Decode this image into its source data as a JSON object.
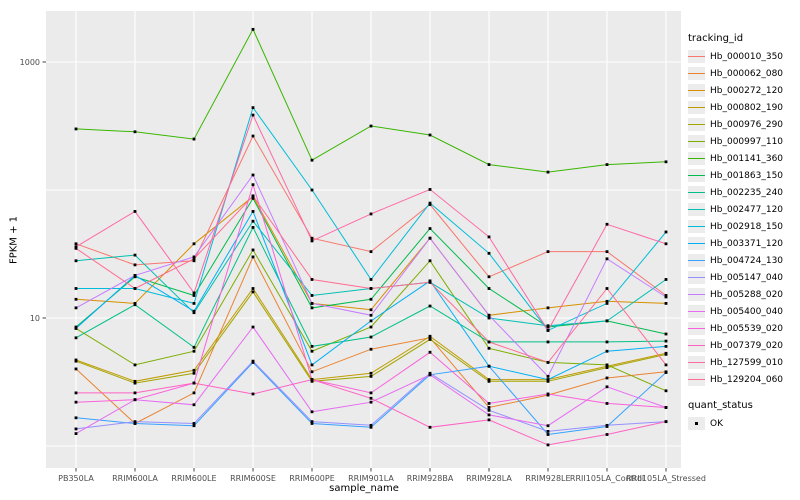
{
  "chart": {
    "y_axis": {
      "label": "FPKM + 1",
      "tick_labels": [
        "1000",
        "10"
      ]
    },
    "x_axis": {
      "label": "sample_name"
    },
    "legend": {
      "tracking_title": "tracking_id",
      "quant_title": "quant_status",
      "quant_label": "OK"
    }
  },
  "chart_data": {
    "type": "line",
    "title": "",
    "xlabel": "sample_name",
    "ylabel": "FPKM + 1",
    "y_scale": "log10",
    "ylim": [
      0.7,
      2500
    ],
    "y_ticks": [
      10,
      1000
    ],
    "grid": true,
    "legend_position": "right",
    "panel_bg": "#EBEBEB",
    "point_color": "#000000",
    "point_legend": {
      "title": "quant_status",
      "items": [
        "OK"
      ]
    },
    "legend_title": "tracking_id",
    "categories": [
      "PB350LA",
      "RRIM600LA",
      "RRIM600LE",
      "RRIM600SE",
      "RRIM600PE",
      "RRIM901LA",
      "RRIM928BA",
      "RRIM928LA",
      "RRIM928LE",
      "RRII105LA_Control",
      "RRII105LA_Stressed"
    ],
    "series": [
      {
        "name": "Hb_000010_350",
        "color": "#F8766D",
        "values": [
          38,
          26,
          28,
          264,
          42,
          33,
          77,
          21,
          33,
          33,
          15
        ]
      },
      {
        "name": "Hb_000062_080",
        "color": "#EA8331",
        "values": [
          4.0,
          1.5,
          2.6,
          30,
          3.8,
          5.7,
          7.0,
          2.0,
          2.5,
          3.4,
          3.8
        ]
      },
      {
        "name": "Hb_000272_120",
        "color": "#D89000",
        "values": [
          14,
          13,
          38,
          89,
          13,
          11.6,
          42,
          10.5,
          12,
          13.5,
          13
        ]
      },
      {
        "name": "Hb_000802_190",
        "color": "#C09B00",
        "values": [
          4.7,
          3.2,
          3.9,
          17,
          3.3,
          3.7,
          7.2,
          3.3,
          3.3,
          4.2,
          5.3
        ]
      },
      {
        "name": "Hb_000976_290",
        "color": "#A3A500",
        "values": [
          4.6,
          3.1,
          3.7,
          16,
          3.2,
          3.5,
          6.8,
          3.2,
          3.2,
          4.1,
          5.2
        ]
      },
      {
        "name": "Hb_000997_110",
        "color": "#7CAE00",
        "values": [
          8.3,
          4.3,
          5.5,
          34,
          5.5,
          8.5,
          28,
          5.8,
          4.5,
          4.3,
          2.7
        ]
      },
      {
        "name": "Hb_001141_360",
        "color": "#39B600",
        "values": [
          300,
          285,
          250,
          1800,
          171,
          316,
          269,
          158,
          138,
          158,
          166
        ]
      },
      {
        "name": "Hb_001863_150",
        "color": "#00BB4E",
        "values": [
          8.5,
          21,
          15,
          86,
          12,
          14,
          50,
          17,
          8.5,
          9.5,
          7.5
        ]
      },
      {
        "name": "Hb_002235_240",
        "color": "#00C087",
        "values": [
          7.0,
          12.7,
          5.9,
          51,
          6.0,
          7.1,
          12.4,
          6.5,
          6.5,
          6.5,
          6.6
        ]
      },
      {
        "name": "Hb_002477_120",
        "color": "#00C0B2",
        "values": [
          28,
          31,
          11,
          57,
          15,
          17,
          19,
          10,
          8.7,
          9.5,
          20
        ]
      },
      {
        "name": "Hb_002918_150",
        "color": "#00BCD8",
        "values": [
          17,
          17,
          13,
          440,
          100,
          20,
          79,
          32,
          8.0,
          13,
          47
        ]
      },
      {
        "name": "Hb_003371_120",
        "color": "#00B0F6",
        "values": [
          8.3,
          21.5,
          11.3,
          68,
          4.3,
          9.5,
          19.5,
          4.2,
          3.3,
          5.5,
          6.0
        ]
      },
      {
        "name": "Hb_004724_130",
        "color": "#35A2FF",
        "values": [
          1.66,
          1.5,
          1.44,
          4.5,
          1.5,
          1.4,
          3.6,
          4.2,
          1.23,
          1.42,
          3.75
        ]
      },
      {
        "name": "Hb_005147_040",
        "color": "#9590FF",
        "values": [
          1.36,
          1.55,
          1.5,
          4.6,
          1.55,
          1.45,
          3.7,
          1.9,
          1.3,
          1.45,
          1.55
        ]
      },
      {
        "name": "Hb_005288_020",
        "color": "#C77CFF",
        "values": [
          12,
          21.5,
          30,
          131,
          13,
          10.5,
          42,
          10.5,
          3.5,
          29,
          14.6
        ]
      },
      {
        "name": "Hb_005400_040",
        "color": "#E76BF3",
        "values": [
          1.25,
          2.3,
          2.1,
          8.5,
          1.85,
          2.2,
          3.6,
          1.75,
          1.44,
          2.9,
          2.0
        ]
      },
      {
        "name": "Hb_005539_020",
        "color": "#FA62DB",
        "values": [
          2.2,
          2.3,
          3.1,
          110,
          3.3,
          2.6,
          5.4,
          2.15,
          2.55,
          2.15,
          2.0
        ]
      },
      {
        "name": "Hb_007379_020",
        "color": "#FF61C3",
        "values": [
          2.6,
          2.6,
          3.1,
          2.55,
          3.3,
          2.36,
          1.4,
          1.6,
          1.02,
          1.23,
          1.55
        ]
      },
      {
        "name": "Hb_127599_010",
        "color": "#FF67A4",
        "values": [
          36,
          68,
          15.7,
          385,
          40,
          65,
          101,
          43,
          8.0,
          54,
          38
        ]
      },
      {
        "name": "Hb_129204_060",
        "color": "#FF6C91",
        "values": [
          35,
          17,
          29,
          90,
          20,
          17,
          19,
          6.5,
          4.5,
          17,
          4.3
        ]
      }
    ]
  }
}
